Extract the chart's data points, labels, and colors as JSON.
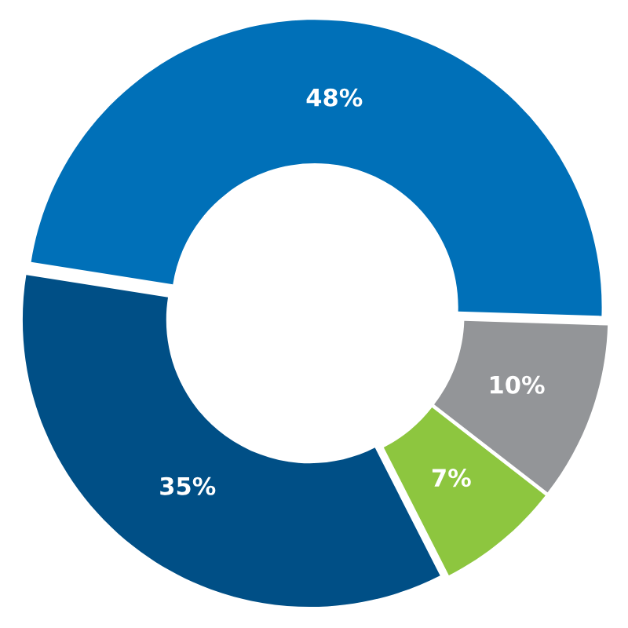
{
  "chart_data": {
    "type": "donut",
    "categories": [
      null,
      null,
      null,
      null
    ],
    "values": [
      48,
      10,
      7,
      35
    ],
    "colors": [
      "#0070b8",
      "#939598",
      "#8dc63f",
      "#004f86"
    ],
    "value_labels": [
      "48%",
      "10%",
      "7%",
      "35%"
    ]
  }
}
